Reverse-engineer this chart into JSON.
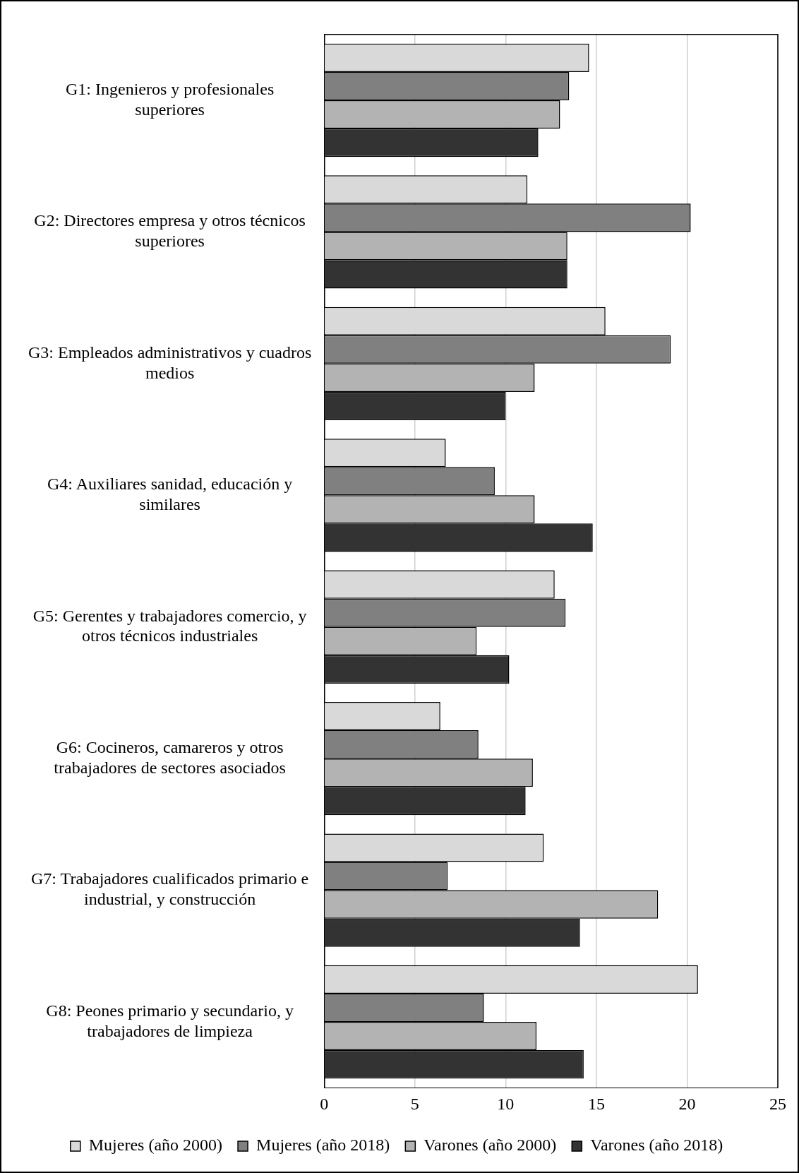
{
  "chart_data": {
    "type": "bar",
    "orientation": "horizontal",
    "categories": [
      "G1: Ingenieros y profesionales superiores",
      "G2: Directores empresa y otros técnicos superiores",
      "G3: Empleados administrativos y cuadros medios",
      "G4: Auxiliares sanidad, educación y similares",
      "G5: Gerentes y trabajadores comercio, y otros técnicos industriales",
      "G6: Cocineros, camareros y otros trabajadores de sectores asociados",
      "G7: Trabajadores cualificados primario e industrial, y construcción",
      "G8: Peones primario y secundario, y trabajadores de limpieza"
    ],
    "series": [
      {
        "name": "Mujeres (año 2000)",
        "color": "#d9d9d9",
        "values": [
          14.6,
          11.2,
          15.5,
          6.7,
          12.7,
          6.4,
          12.1,
          20.6
        ]
      },
      {
        "name": "Mujeres (año 2018)",
        "color": "#808080",
        "values": [
          13.5,
          20.2,
          19.1,
          9.4,
          13.3,
          8.5,
          6.8,
          8.8
        ]
      },
      {
        "name": "Varones (año 2000)",
        "color": "#b3b3b3",
        "values": [
          13.0,
          13.4,
          11.6,
          11.6,
          8.4,
          11.5,
          18.4,
          11.7
        ]
      },
      {
        "name": "Varones (año 2018)",
        "color": "#333333",
        "values": [
          11.8,
          13.4,
          10.0,
          14.8,
          10.2,
          11.1,
          14.1,
          14.3
        ]
      }
    ],
    "xlim": [
      0,
      25
    ],
    "xticks": [
      0,
      5,
      10,
      15,
      20,
      25
    ],
    "grid": "x",
    "legend": "bottom"
  }
}
